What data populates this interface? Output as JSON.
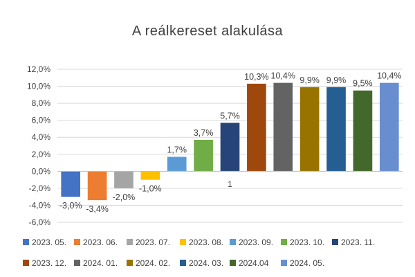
{
  "chart_data": {
    "type": "bar",
    "title": "A reálkereset alakulása",
    "xlabel": "",
    "ylabel": "",
    "ylim": [
      -6,
      12
    ],
    "y_ticks": [
      -6,
      -4,
      -2,
      0,
      2,
      4,
      6,
      8,
      10,
      12
    ],
    "y_tick_labels": [
      "-6,0%",
      "-4,0%",
      "-2,0%",
      "0,0%",
      "2,0%",
      "4,0%",
      "6,0%",
      "8,0%",
      "10,0%",
      "12,0%"
    ],
    "grid": true,
    "legend_position": "bottom",
    "categories": [
      "2023. 05.",
      "2023. 06.",
      "2023. 07.",
      "2023. 08.",
      "2023. 09.",
      "2023. 10.",
      "2023. 11.",
      "2023. 12.",
      "2024. 01.",
      "2024. 02.",
      "2024. 03.",
      "2024.04",
      "2024. 05."
    ],
    "values": [
      -3.0,
      -3.4,
      -2.0,
      -1.0,
      1.7,
      3.7,
      5.7,
      10.3,
      10.4,
      9.9,
      9.9,
      9.5,
      10.4
    ],
    "data_labels": [
      "-3,0%",
      "-3,4%",
      "-2,0%",
      "-1,0%",
      "1,7%",
      "3,7%",
      "5,7%",
      "10,3%",
      "10,4%",
      "9,9%",
      "9,9%",
      "9,5%",
      "10,4%"
    ],
    "colors": [
      "#4472C4",
      "#ED7D31",
      "#A5A5A5",
      "#FFC000",
      "#5B9BD5",
      "#70AD47",
      "#264478",
      "#9E480E",
      "#636363",
      "#997300",
      "#255E91",
      "#43682B",
      "#698ED0"
    ],
    "axis_annotation": "1"
  }
}
